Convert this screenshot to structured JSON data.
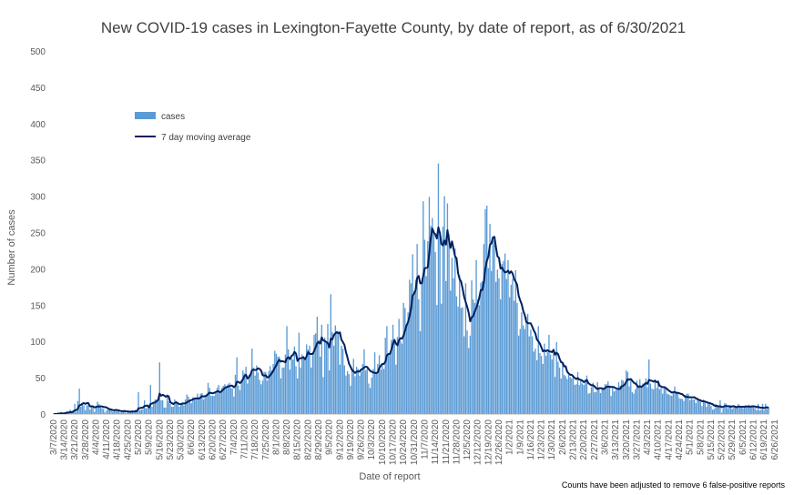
{
  "chart_data": {
    "type": "bar",
    "title": "New COVID-19 cases in Lexington-Fayette County, by date of report, as of 6/30/2021",
    "xlabel": "Date of report",
    "ylabel": "Number of cases",
    "ylim": [
      0,
      500
    ],
    "yticks": [
      0,
      50,
      100,
      150,
      200,
      250,
      300,
      350,
      400,
      450,
      500
    ],
    "x_start": "3/7/2020",
    "x_end": "6/30/2021",
    "xtick_labels": [
      "3/7/2020",
      "3/14/2020",
      "3/21/2020",
      "3/28/2020",
      "4/4/2020",
      "4/11/2020",
      "4/18/2020",
      "4/25/2020",
      "5/2/2020",
      "5/9/2020",
      "5/16/2020",
      "5/23/2020",
      "5/30/2020",
      "6/6/2020",
      "6/13/2020",
      "6/20/2020",
      "6/27/2020",
      "7/4/2020",
      "7/11/2020",
      "7/18/2020",
      "7/25/2020",
      "8/1/2020",
      "8/8/2020",
      "8/15/2020",
      "8/22/2020",
      "8/29/2020",
      "9/5/2020",
      "9/12/2020",
      "9/19/2020",
      "9/26/2020",
      "10/3/2020",
      "10/10/2020",
      "10/17/2020",
      "10/24/2020",
      "10/31/2020",
      "11/7/2020",
      "11/14/2020",
      "11/21/2020",
      "11/28/2020",
      "12/5/2020",
      "12/12/2020",
      "12/19/2020",
      "12/26/2020",
      "1/2/2021",
      "1/9/2021",
      "1/16/2021",
      "1/23/2021",
      "1/30/2021",
      "2/6/2021",
      "2/13/2021",
      "2/20/2021",
      "2/27/2021",
      "3/6/2021",
      "3/13/2021",
      "3/20/2021",
      "3/27/2021",
      "4/3/2021",
      "4/10/2021",
      "4/17/2021",
      "4/24/2021",
      "5/1/2021",
      "5/8/2021",
      "5/15/2021",
      "5/22/2021",
      "5/29/2021",
      "6/5/2021",
      "6/12/2021",
      "6/19/2021",
      "6/26/2021"
    ],
    "series": [
      {
        "name": "cases",
        "type": "bar",
        "color": "#5b9bd5",
        "weekly_level": [
          1,
          3,
          10,
          12,
          9,
          6,
          4,
          3,
          6,
          9,
          20,
          13,
          14,
          20,
          25,
          28,
          32,
          36,
          48,
          52,
          55,
          62,
          72,
          76,
          82,
          85,
          96,
          102,
          82,
          64,
          60,
          56,
          62,
          72,
          92,
          122,
          178,
          205,
          225,
          245,
          220,
          175,
          135,
          185,
          205,
          185,
          155,
          130,
          105,
          85,
          75,
          62,
          50,
          44,
          38,
          34,
          30,
          36,
          40,
          40,
          38,
          30,
          25,
          22,
          20,
          16,
          12,
          10,
          9,
          8
        ],
        "daily_values": [
          0,
          0,
          0,
          2,
          1,
          3,
          0,
          1,
          2,
          4,
          3,
          6,
          2,
          5,
          14,
          3,
          18,
          35,
          10,
          14,
          12,
          5,
          12,
          16,
          6,
          10,
          12,
          3,
          9,
          17,
          14,
          10,
          8,
          7,
          2,
          5,
          8,
          7,
          6,
          3,
          5,
          5,
          4,
          5,
          2,
          4,
          4,
          5,
          1,
          4,
          2,
          3,
          5,
          4,
          6,
          4,
          30,
          5,
          6,
          7,
          19,
          8,
          8,
          9,
          40,
          10,
          16,
          20,
          20,
          20,
          71,
          19,
          19,
          9,
          9,
          27,
          17,
          14,
          10,
          10,
          20,
          16,
          16,
          10,
          12,
          16,
          12,
          20,
          27,
          24,
          20,
          15,
          23,
          20,
          21,
          28,
          23,
          28,
          29,
          20,
          23,
          27,
          43,
          36,
          25,
          25,
          25,
          30,
          36,
          40,
          29,
          36,
          39,
          41,
          38,
          41,
          43,
          36,
          35,
          24,
          54,
          78,
          39,
          33,
          47,
          60,
          56,
          65,
          42,
          54,
          56,
          90,
          64,
          53,
          67,
          57,
          47,
          41,
          46,
          58,
          58,
          46,
          59,
          66,
          60,
          69,
          87,
          83,
          79,
          79,
          49,
          64,
          64,
          82,
          121,
          89,
          61,
          78,
          75,
          93,
          66,
          49,
          112,
          64,
          82,
          80,
          74,
          96,
          89,
          94,
          64,
          81,
          109,
          111,
          134,
          102,
          79,
          123,
          51,
          105,
          100,
          124,
          60,
          165,
          113,
          94,
          122,
          112,
          113,
          68,
          94,
          90,
          67,
          53,
          59,
          55,
          39,
          62,
          76,
          52,
          65,
          62,
          53,
          58,
          69,
          89,
          60,
          62,
          42,
          36,
          50,
          62,
          85,
          58,
          69,
          81,
          61,
          67,
          62,
          105,
          121,
          82,
          82,
          102,
          123,
          100,
          68,
          106,
          131,
          101,
          97,
          153,
          146,
          120,
          140,
          185,
          180,
          220,
          169,
          185,
          234,
          158,
          114,
          180,
          293,
          240,
          190,
          238,
          299,
          259,
          270,
          253,
          223,
          150,
          345,
          245,
          152,
          258,
          300,
          183,
          290,
          248,
          170,
          215,
          187,
          228,
          162,
          148,
          191,
          146,
          147,
          107,
          180,
          115,
          91,
          108,
          184,
          158,
          153,
          212,
          158,
          150,
          181,
          183,
          234,
          282,
          287,
          201,
          262,
          197,
          239,
          240,
          182,
          199,
          187,
          158,
          207,
          211,
          221,
          186,
          212,
          161,
          178,
          186,
          156,
          198,
          153,
          108,
          117,
          140,
          122,
          117,
          134,
          138,
          107,
          116,
          107,
          86,
          90,
          74,
          121,
          84,
          80,
          69,
          97,
          80,
          85,
          109,
          82,
          75,
          90,
          51,
          99,
          72,
          64,
          49,
          70,
          54,
          52,
          48,
          54,
          51,
          49,
          54,
          40,
          41,
          58,
          40,
          47,
          42,
          40,
          48,
          53,
          28,
          29,
          37,
          43,
          30,
          30,
          44,
          36,
          29,
          36,
          35,
          41,
          41,
          45,
          37,
          25,
          38,
          31,
          33,
          33,
          44,
          39,
          47,
          46,
          42,
          60,
          58,
          38,
          46,
          30,
          28,
          34,
          46,
          37,
          48,
          38,
          42,
          40,
          49,
          37,
          75,
          42,
          35,
          34,
          48,
          36,
          43,
          34,
          36,
          28,
          35,
          38,
          28,
          27,
          26,
          25,
          31,
          38,
          29,
          29,
          22,
          21,
          21,
          18,
          26,
          28,
          28,
          19,
          21,
          20,
          20,
          15,
          22,
          18,
          17,
          11,
          20,
          17,
          10,
          16,
          15,
          11,
          6,
          7,
          14,
          10,
          9,
          19,
          2,
          8,
          15,
          14,
          8,
          10,
          12,
          7,
          10,
          9,
          10,
          14,
          9,
          10,
          8,
          10,
          12,
          9,
          13,
          9,
          12,
          10,
          8,
          5,
          14,
          5,
          6,
          14,
          5,
          14,
          7,
          9
        ]
      },
      {
        "name": "7 day moving average",
        "type": "line",
        "color": "#002060"
      }
    ],
    "grid": false,
    "legend_position": "top-left",
    "annotation": "Counts have been adjusted to remove 6 false-positive reports"
  }
}
